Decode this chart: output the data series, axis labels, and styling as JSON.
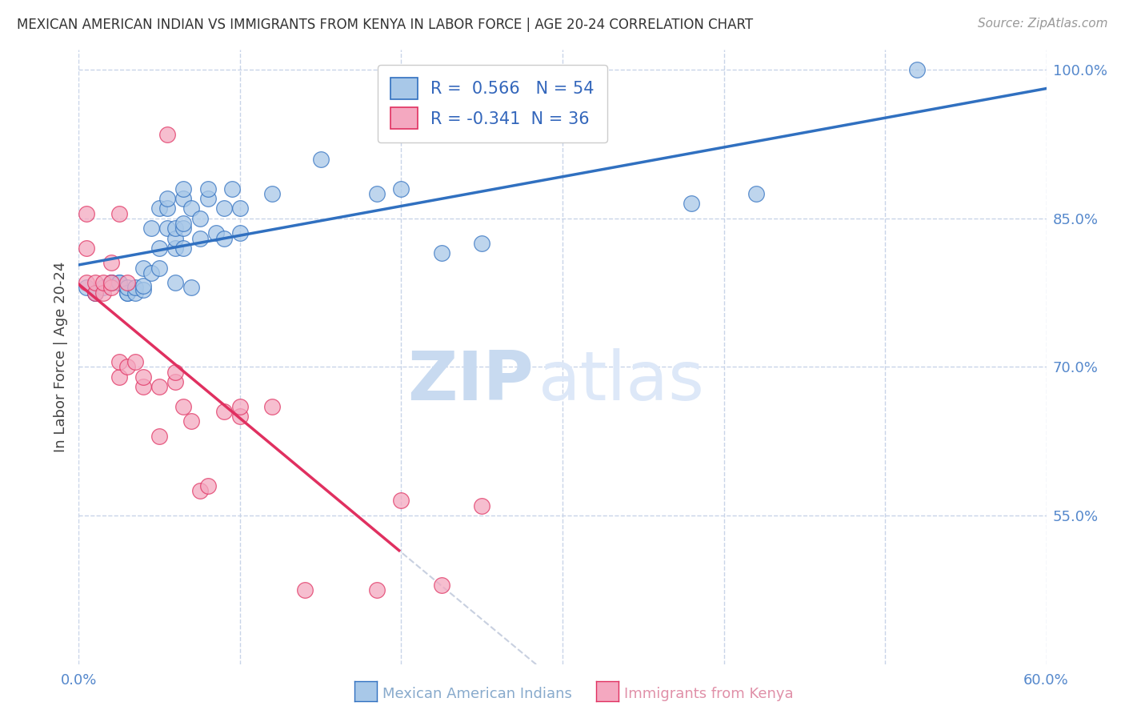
{
  "title": "MEXICAN AMERICAN INDIAN VS IMMIGRANTS FROM KENYA IN LABOR FORCE | AGE 20-24 CORRELATION CHART",
  "source": "Source: ZipAtlas.com",
  "ylabel": "In Labor Force | Age 20-24",
  "xlim": [
    0.0,
    0.6
  ],
  "ylim": [
    0.4,
    1.02
  ],
  "x_ticks": [
    0.0,
    0.1,
    0.2,
    0.3,
    0.4,
    0.5,
    0.6
  ],
  "x_tick_labels": [
    "0.0%",
    "",
    "",
    "",
    "",
    "",
    "60.0%"
  ],
  "right_y_ticks": [
    0.55,
    0.7,
    0.85,
    1.0
  ],
  "right_y_tick_labels": [
    "55.0%",
    "70.0%",
    "85.0%",
    "100.0%"
  ],
  "blue_R": 0.566,
  "blue_N": 54,
  "pink_R": -0.341,
  "pink_N": 36,
  "blue_color": "#a8c8e8",
  "pink_color": "#f4a8c0",
  "blue_line_color": "#3070c0",
  "pink_line_color": "#e03060",
  "pink_line_dashed_color": "#c8d0e0",
  "watermark_zip": "ZIP",
  "watermark_atlas": "atlas",
  "legend_label_blue": "Mexican American Indians",
  "legend_label_pink": "Immigrants from Kenya",
  "blue_points_x": [
    0.005,
    0.01,
    0.01,
    0.015,
    0.02,
    0.02,
    0.025,
    0.025,
    0.03,
    0.03,
    0.03,
    0.035,
    0.035,
    0.04,
    0.04,
    0.04,
    0.045,
    0.045,
    0.05,
    0.05,
    0.05,
    0.055,
    0.055,
    0.055,
    0.06,
    0.06,
    0.06,
    0.06,
    0.065,
    0.065,
    0.065,
    0.065,
    0.065,
    0.07,
    0.07,
    0.075,
    0.075,
    0.08,
    0.08,
    0.085,
    0.09,
    0.09,
    0.095,
    0.1,
    0.1,
    0.12,
    0.15,
    0.185,
    0.2,
    0.225,
    0.25,
    0.38,
    0.42,
    0.52
  ],
  "blue_points_y": [
    0.78,
    0.775,
    0.775,
    0.78,
    0.785,
    0.785,
    0.785,
    0.785,
    0.775,
    0.775,
    0.78,
    0.775,
    0.78,
    0.778,
    0.782,
    0.8,
    0.84,
    0.795,
    0.8,
    0.82,
    0.86,
    0.84,
    0.86,
    0.87,
    0.785,
    0.82,
    0.83,
    0.84,
    0.82,
    0.84,
    0.845,
    0.87,
    0.88,
    0.78,
    0.86,
    0.83,
    0.85,
    0.87,
    0.88,
    0.835,
    0.83,
    0.86,
    0.88,
    0.835,
    0.86,
    0.875,
    0.91,
    0.875,
    0.88,
    0.815,
    0.825,
    0.865,
    0.875,
    1.0
  ],
  "pink_points_x": [
    0.005,
    0.005,
    0.005,
    0.01,
    0.01,
    0.015,
    0.015,
    0.02,
    0.02,
    0.02,
    0.025,
    0.025,
    0.025,
    0.03,
    0.03,
    0.035,
    0.04,
    0.04,
    0.05,
    0.05,
    0.055,
    0.06,
    0.06,
    0.065,
    0.07,
    0.075,
    0.08,
    0.09,
    0.1,
    0.1,
    0.12,
    0.14,
    0.185,
    0.2,
    0.225,
    0.25
  ],
  "pink_points_y": [
    0.785,
    0.82,
    0.855,
    0.775,
    0.785,
    0.775,
    0.785,
    0.78,
    0.785,
    0.805,
    0.69,
    0.705,
    0.855,
    0.785,
    0.7,
    0.705,
    0.68,
    0.69,
    0.63,
    0.68,
    0.935,
    0.685,
    0.695,
    0.66,
    0.645,
    0.575,
    0.58,
    0.655,
    0.65,
    0.66,
    0.66,
    0.475,
    0.475,
    0.565,
    0.48,
    0.56
  ],
  "grid_color": "#c8d4e8",
  "bg_color": "#ffffff"
}
